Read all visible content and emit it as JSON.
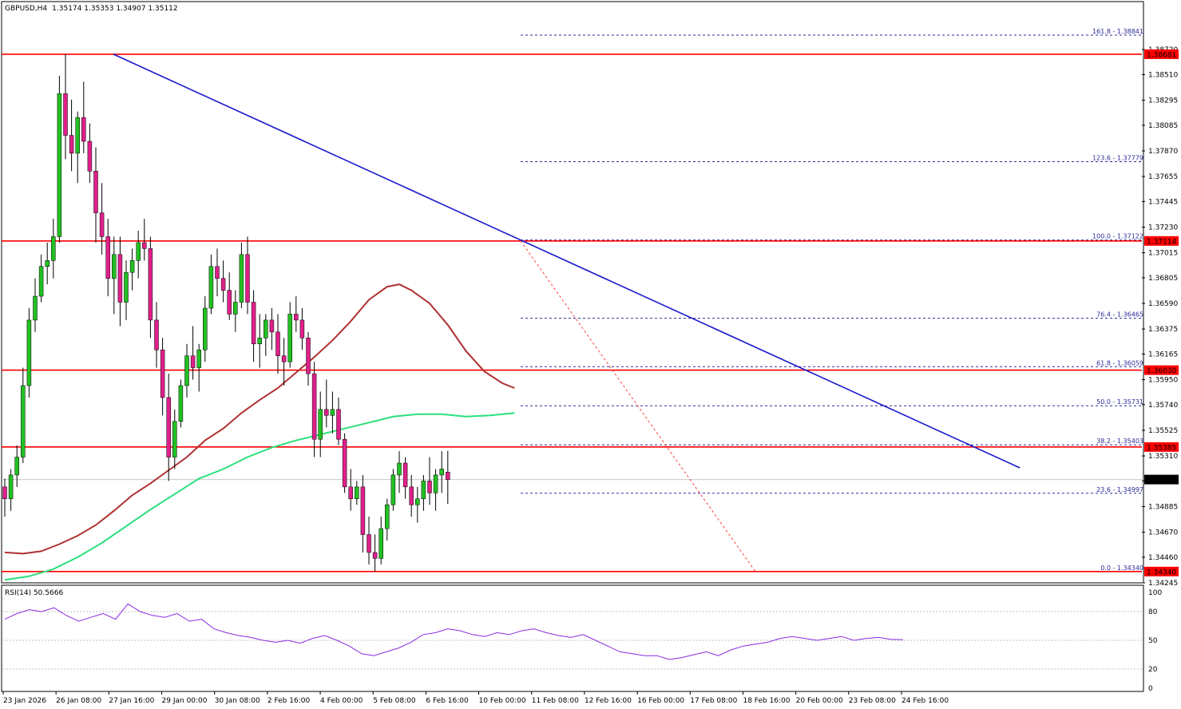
{
  "header": {
    "symbol": "GBPUSD,H4",
    "ohlc": "1.35174 1.35353 1.34907 1.35112"
  },
  "rsi_header": "RSI(14) 50.5666",
  "colors": {
    "bull": "#22c022",
    "bear": "#e0208a",
    "resistance": "#ff0000",
    "trendline": "#1a1acc",
    "ma_red": "#b03030",
    "ma_green": "#2be07a",
    "fib": "#2a2a9a",
    "zigzag": "#ff4040",
    "rsi": "#8a2be2"
  },
  "chart_data": {
    "type": "candlestick",
    "symbol": "GBPUSD",
    "timeframe": "H4",
    "price_range": [
      1.34245,
      1.38935
    ],
    "y_ticks": [
      "1.38720",
      "1.38510",
      "1.38295",
      "1.38085",
      "1.37870",
      "1.37655",
      "1.37445",
      "1.37230",
      "1.37015",
      "1.36805",
      "1.36590",
      "1.36375",
      "1.36165",
      "1.35950",
      "1.35740",
      "1.35525",
      "1.35310",
      "1.35100",
      "1.34885",
      "1.34670",
      "1.34460",
      "1.34245"
    ],
    "x_labels": [
      "23 Jan 2026",
      "26 Jan 08:00",
      "27 Jan 16:00",
      "29 Jan 00:00",
      "30 Jan 08:00",
      "2 Feb 16:00",
      "4 Feb 00:00",
      "5 Feb 08:00",
      "6 Feb 16:00",
      "10 Feb 00:00",
      "11 Feb 08:00",
      "12 Feb 16:00",
      "16 Feb 00:00",
      "17 Feb 08:00",
      "18 Feb 16:00",
      "20 Feb 00:00",
      "23 Feb 08:00",
      "24 Feb 16:00"
    ],
    "price_labels": [
      {
        "value": 1.38681,
        "text": "1.38681"
      },
      {
        "value": 1.37114,
        "text": "1.37114"
      },
      {
        "value": 1.3603,
        "text": "1.36030"
      },
      {
        "value": 1.35385,
        "text": "1.35385"
      },
      {
        "value": 1.3434,
        "text": "1.34340"
      },
      {
        "value": 1.35112,
        "text": "1.35112"
      }
    ],
    "resistance_levels": [
      1.38681,
      1.37114,
      1.3603,
      1.35385,
      1.3434
    ],
    "fibonacci": [
      {
        "text": "161.8 - 1.38841",
        "value": 1.38841
      },
      {
        "text": "123.6 - 1.37779",
        "value": 1.37779
      },
      {
        "text": "100.0 - 1.37122",
        "value": 1.37122
      },
      {
        "text": "76.4 - 1.36465",
        "value": 1.36465
      },
      {
        "text": "61.8 - 1.36059",
        "value": 1.36059
      },
      {
        "text": "50.0 - 1.35731",
        "value": 1.35731
      },
      {
        "text": "38.2 - 1.35403",
        "value": 1.35403
      },
      {
        "text": "23.6 - 1.34997",
        "value": 1.34997
      },
      {
        "text": "0.0 - 1.34340",
        "value": 1.3434
      }
    ],
    "trendline": [
      [
        0,
        1.38681
      ],
      [
        72,
        1.3521
      ]
    ],
    "zigzag": [
      [
        47,
        1.37114
      ],
      [
        66,
        1.3434
      ]
    ],
    "ma_red": [
      [
        0,
        1.345
      ],
      [
        3,
        1.3449
      ],
      [
        6,
        1.3451
      ],
      [
        9,
        1.3457
      ],
      [
        12,
        1.3464
      ],
      [
        15,
        1.3473
      ],
      [
        18,
        1.3485
      ],
      [
        21,
        1.3498
      ],
      [
        24,
        1.3508
      ],
      [
        27,
        1.3519
      ],
      [
        30,
        1.353
      ],
      [
        33,
        1.3544
      ],
      [
        36,
        1.3554
      ],
      [
        39,
        1.3567
      ],
      [
        42,
        1.3578
      ],
      [
        45,
        1.3588
      ],
      [
        48,
        1.3601
      ],
      [
        51,
        1.3614
      ],
      [
        54,
        1.3628
      ],
      [
        57,
        1.3644
      ],
      [
        60,
        1.3662
      ],
      [
        63,
        1.3673
      ],
      [
        65,
        1.3675
      ],
      [
        67,
        1.367
      ],
      [
        70,
        1.3659
      ],
      [
        73,
        1.3641
      ],
      [
        76,
        1.3619
      ],
      [
        79,
        1.3602
      ],
      [
        82,
        1.3592
      ],
      [
        84,
        1.3588
      ]
    ],
    "ma_green": [
      [
        0,
        1.3427
      ],
      [
        4,
        1.343
      ],
      [
        8,
        1.3436
      ],
      [
        12,
        1.3446
      ],
      [
        16,
        1.3458
      ],
      [
        20,
        1.3472
      ],
      [
        24,
        1.3486
      ],
      [
        28,
        1.3499
      ],
      [
        32,
        1.3512
      ],
      [
        36,
        1.352
      ],
      [
        40,
        1.353
      ],
      [
        44,
        1.3538
      ],
      [
        48,
        1.3544
      ],
      [
        52,
        1.3549
      ],
      [
        56,
        1.3554
      ],
      [
        60,
        1.3559
      ],
      [
        64,
        1.3564
      ],
      [
        68,
        1.3566
      ],
      [
        72,
        1.3566
      ],
      [
        76,
        1.3564
      ],
      [
        80,
        1.3565
      ],
      [
        84,
        1.3567
      ]
    ],
    "candles": [
      [
        1.3505,
        1.3512,
        1.348,
        1.3495
      ],
      [
        1.3495,
        1.352,
        1.3485,
        1.3515
      ],
      [
        1.3515,
        1.354,
        1.3505,
        1.353
      ],
      [
        1.353,
        1.3605,
        1.3525,
        1.359
      ],
      [
        1.359,
        1.3655,
        1.358,
        1.3645
      ],
      [
        1.3645,
        1.368,
        1.3635,
        1.3665
      ],
      [
        1.3665,
        1.37,
        1.366,
        1.369
      ],
      [
        1.369,
        1.371,
        1.3675,
        1.3695
      ],
      [
        1.3695,
        1.373,
        1.368,
        1.3715
      ],
      [
        1.3715,
        1.385,
        1.371,
        1.3835
      ],
      [
        1.3835,
        1.38681,
        1.378,
        1.38
      ],
      [
        1.38,
        1.383,
        1.377,
        1.3785
      ],
      [
        1.3785,
        1.382,
        1.376,
        1.3815
      ],
      [
        1.3815,
        1.3845,
        1.3785,
        1.3795
      ],
      [
        1.3795,
        1.381,
        1.376,
        1.377
      ],
      [
        1.377,
        1.379,
        1.371,
        1.3735
      ],
      [
        1.3735,
        1.376,
        1.37,
        1.3715
      ],
      [
        1.3715,
        1.373,
        1.3665,
        1.368
      ],
      [
        1.368,
        1.3715,
        1.365,
        1.37
      ],
      [
        1.37,
        1.3715,
        1.364,
        1.366
      ],
      [
        1.366,
        1.3695,
        1.3645,
        1.3685
      ],
      [
        1.3685,
        1.3705,
        1.367,
        1.3695
      ],
      [
        1.3695,
        1.372,
        1.368,
        1.371
      ],
      [
        1.371,
        1.373,
        1.3695,
        1.3705
      ],
      [
        1.3705,
        1.3715,
        1.363,
        1.3645
      ],
      [
        1.3645,
        1.366,
        1.3605,
        1.362
      ],
      [
        1.362,
        1.363,
        1.3565,
        1.358
      ],
      [
        1.358,
        1.36,
        1.351,
        1.353
      ],
      [
        1.353,
        1.357,
        1.352,
        1.356
      ],
      [
        1.356,
        1.3595,
        1.3555,
        1.359
      ],
      [
        1.359,
        1.3625,
        1.358,
        1.3615
      ],
      [
        1.3615,
        1.364,
        1.3595,
        1.3605
      ],
      [
        1.3605,
        1.3625,
        1.3585,
        1.362
      ],
      [
        1.362,
        1.3665,
        1.361,
        1.3655
      ],
      [
        1.3655,
        1.37,
        1.365,
        1.369
      ],
      [
        1.369,
        1.3705,
        1.3665,
        1.368
      ],
      [
        1.368,
        1.3695,
        1.366,
        1.367
      ],
      [
        1.367,
        1.3685,
        1.3645,
        1.365
      ],
      [
        1.365,
        1.367,
        1.3635,
        1.366
      ],
      [
        1.366,
        1.371,
        1.3655,
        1.37
      ],
      [
        1.37,
        1.3715,
        1.365,
        1.366
      ],
      [
        1.366,
        1.367,
        1.361,
        1.3625
      ],
      [
        1.3625,
        1.365,
        1.3605,
        1.363
      ],
      [
        1.363,
        1.365,
        1.3615,
        1.3645
      ],
      [
        1.3645,
        1.3655,
        1.362,
        1.3635
      ],
      [
        1.3635,
        1.365,
        1.36,
        1.3615
      ],
      [
        1.3615,
        1.363,
        1.359,
        1.361
      ],
      [
        1.361,
        1.366,
        1.3605,
        1.365
      ],
      [
        1.365,
        1.3665,
        1.3635,
        1.3645
      ],
      [
        1.3645,
        1.3655,
        1.362,
        1.363
      ],
      [
        1.363,
        1.3635,
        1.359,
        1.36
      ],
      [
        1.36,
        1.361,
        1.353,
        1.3545
      ],
      [
        1.3545,
        1.3585,
        1.353,
        1.357
      ],
      [
        1.357,
        1.3595,
        1.3555,
        1.3565
      ],
      [
        1.3565,
        1.3585,
        1.355,
        1.357
      ],
      [
        1.357,
        1.358,
        1.354,
        1.3545
      ],
      [
        1.3545,
        1.355,
        1.35,
        1.3505
      ],
      [
        1.3505,
        1.352,
        1.3485,
        1.3495
      ],
      [
        1.3495,
        1.351,
        1.349,
        1.3505
      ],
      [
        1.3505,
        1.3515,
        1.345,
        1.3465
      ],
      [
        1.3465,
        1.348,
        1.344,
        1.345
      ],
      [
        1.345,
        1.3465,
        1.3434,
        1.3445
      ],
      [
        1.3445,
        1.348,
        1.344,
        1.347
      ],
      [
        1.347,
        1.3495,
        1.346,
        1.349
      ],
      [
        1.349,
        1.352,
        1.3485,
        1.3515
      ],
      [
        1.3515,
        1.3535,
        1.35,
        1.3525
      ],
      [
        1.3525,
        1.353,
        1.3495,
        1.3505
      ],
      [
        1.3505,
        1.3515,
        1.348,
        1.349
      ],
      [
        1.349,
        1.3505,
        1.3475,
        1.3495
      ],
      [
        1.3495,
        1.3515,
        1.3485,
        1.351
      ],
      [
        1.351,
        1.353,
        1.349,
        1.35
      ],
      [
        1.35,
        1.352,
        1.3485,
        1.3515
      ],
      [
        1.3515,
        1.3535,
        1.35,
        1.352
      ],
      [
        1.35174,
        1.35353,
        1.34907,
        1.35112
      ]
    ],
    "rsi": {
      "levels": [
        100,
        80,
        50,
        20,
        0
      ],
      "values": [
        72,
        78,
        82,
        80,
        84,
        76,
        70,
        74,
        78,
        72,
        88,
        80,
        76,
        74,
        78,
        70,
        72,
        62,
        58,
        55,
        53,
        50,
        48,
        50,
        47,
        52,
        55,
        50,
        44,
        36,
        34,
        38,
        42,
        48,
        56,
        58,
        62,
        60,
        56,
        54,
        58,
        56,
        60,
        62,
        58,
        55,
        53,
        56,
        50,
        44,
        38,
        36,
        34,
        34,
        30,
        32,
        35,
        38,
        34,
        40,
        44,
        46,
        48,
        52,
        54,
        52,
        50,
        52,
        54,
        50,
        52,
        53,
        51,
        50.5666
      ]
    }
  }
}
